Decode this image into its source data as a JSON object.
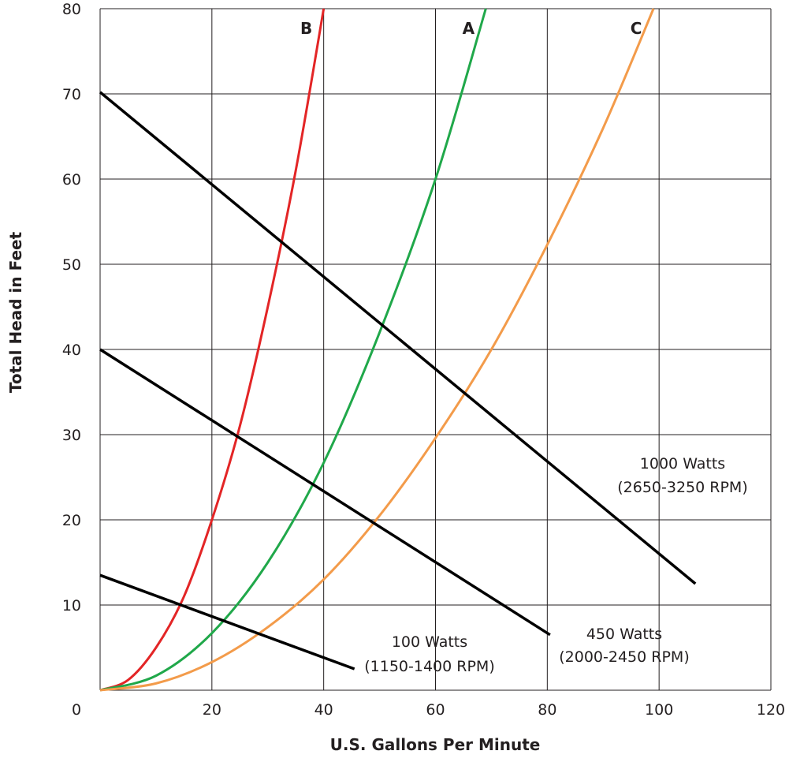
{
  "chart_data": {
    "type": "line",
    "xlabel": "U.S. Gallons Per Minute",
    "ylabel": "Total Head in Feet",
    "xlim": [
      0,
      120
    ],
    "ylim": [
      0,
      80
    ],
    "x_ticks": [
      "0",
      "20",
      "40",
      "60",
      "80",
      "100",
      "120"
    ],
    "y_ticks": [
      "10",
      "20",
      "30",
      "40",
      "50",
      "60",
      "70",
      "80"
    ],
    "grid": true,
    "system_curves": [
      {
        "name": "B",
        "color": "#e32526",
        "x": [
          0,
          5,
          10,
          15,
          20,
          25,
          30,
          35,
          40
        ],
        "y": [
          0,
          1.2,
          5,
          11,
          20,
          31,
          45,
          61,
          80
        ]
      },
      {
        "name": "A",
        "color": "#20a84a",
        "x": [
          0,
          10,
          20,
          30,
          40,
          50,
          60,
          69
        ],
        "y": [
          0,
          1.7,
          6.7,
          15,
          26.7,
          42,
          60,
          80
        ]
      },
      {
        "name": "C",
        "color": "#f39b4a",
        "x": [
          0,
          10,
          20,
          30,
          40,
          50,
          60,
          70,
          80,
          90,
          99
        ],
        "y": [
          0,
          0.8,
          3.3,
          7.4,
          13,
          20.5,
          29.6,
          40,
          52.3,
          66,
          80
        ]
      }
    ],
    "pump_lines": [
      {
        "label_line1": "100 Watts",
        "label_line2": "(1150-1400 RPM)",
        "color": "#000000",
        "x": [
          0,
          45.5
        ],
        "y": [
          13.5,
          2.5
        ]
      },
      {
        "label_line1": "450 Watts",
        "label_line2": "(2000-2450 RPM)",
        "color": "#000000",
        "x": [
          0,
          80.5
        ],
        "y": [
          40,
          6.5
        ]
      },
      {
        "label_line1": "1000 Watts",
        "label_line2": "(2650-3250 RPM)",
        "color": "#000000",
        "x": [
          0,
          106.5
        ],
        "y": [
          70.2,
          12.5
        ]
      }
    ]
  }
}
